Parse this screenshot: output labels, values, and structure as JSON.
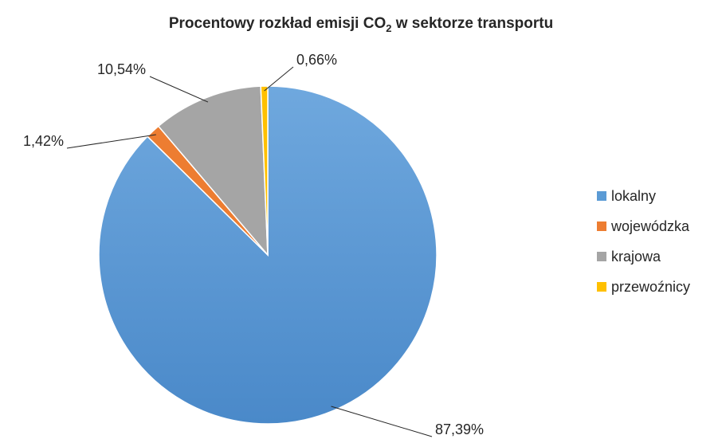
{
  "chart_data": {
    "type": "pie",
    "title_main": "Procentowy rozkład emisji CO",
    "title_sub": "2",
    "title_rest": " w sektorze transportu",
    "legend_position": "right",
    "slices": [
      {
        "name": "lokalny",
        "value": 87.39,
        "label": "87,39%",
        "color": "#5b9bd5"
      },
      {
        "name": "wojewódzka",
        "value": 1.42,
        "label": "1,42%",
        "color": "#ed7d31"
      },
      {
        "name": "krajowa",
        "value": 10.54,
        "label": "10,54%",
        "color": "#a5a5a5"
      },
      {
        "name": "przewoźnicy",
        "value": 0.66,
        "label": "0,66%",
        "color": "#ffc000"
      }
    ]
  }
}
